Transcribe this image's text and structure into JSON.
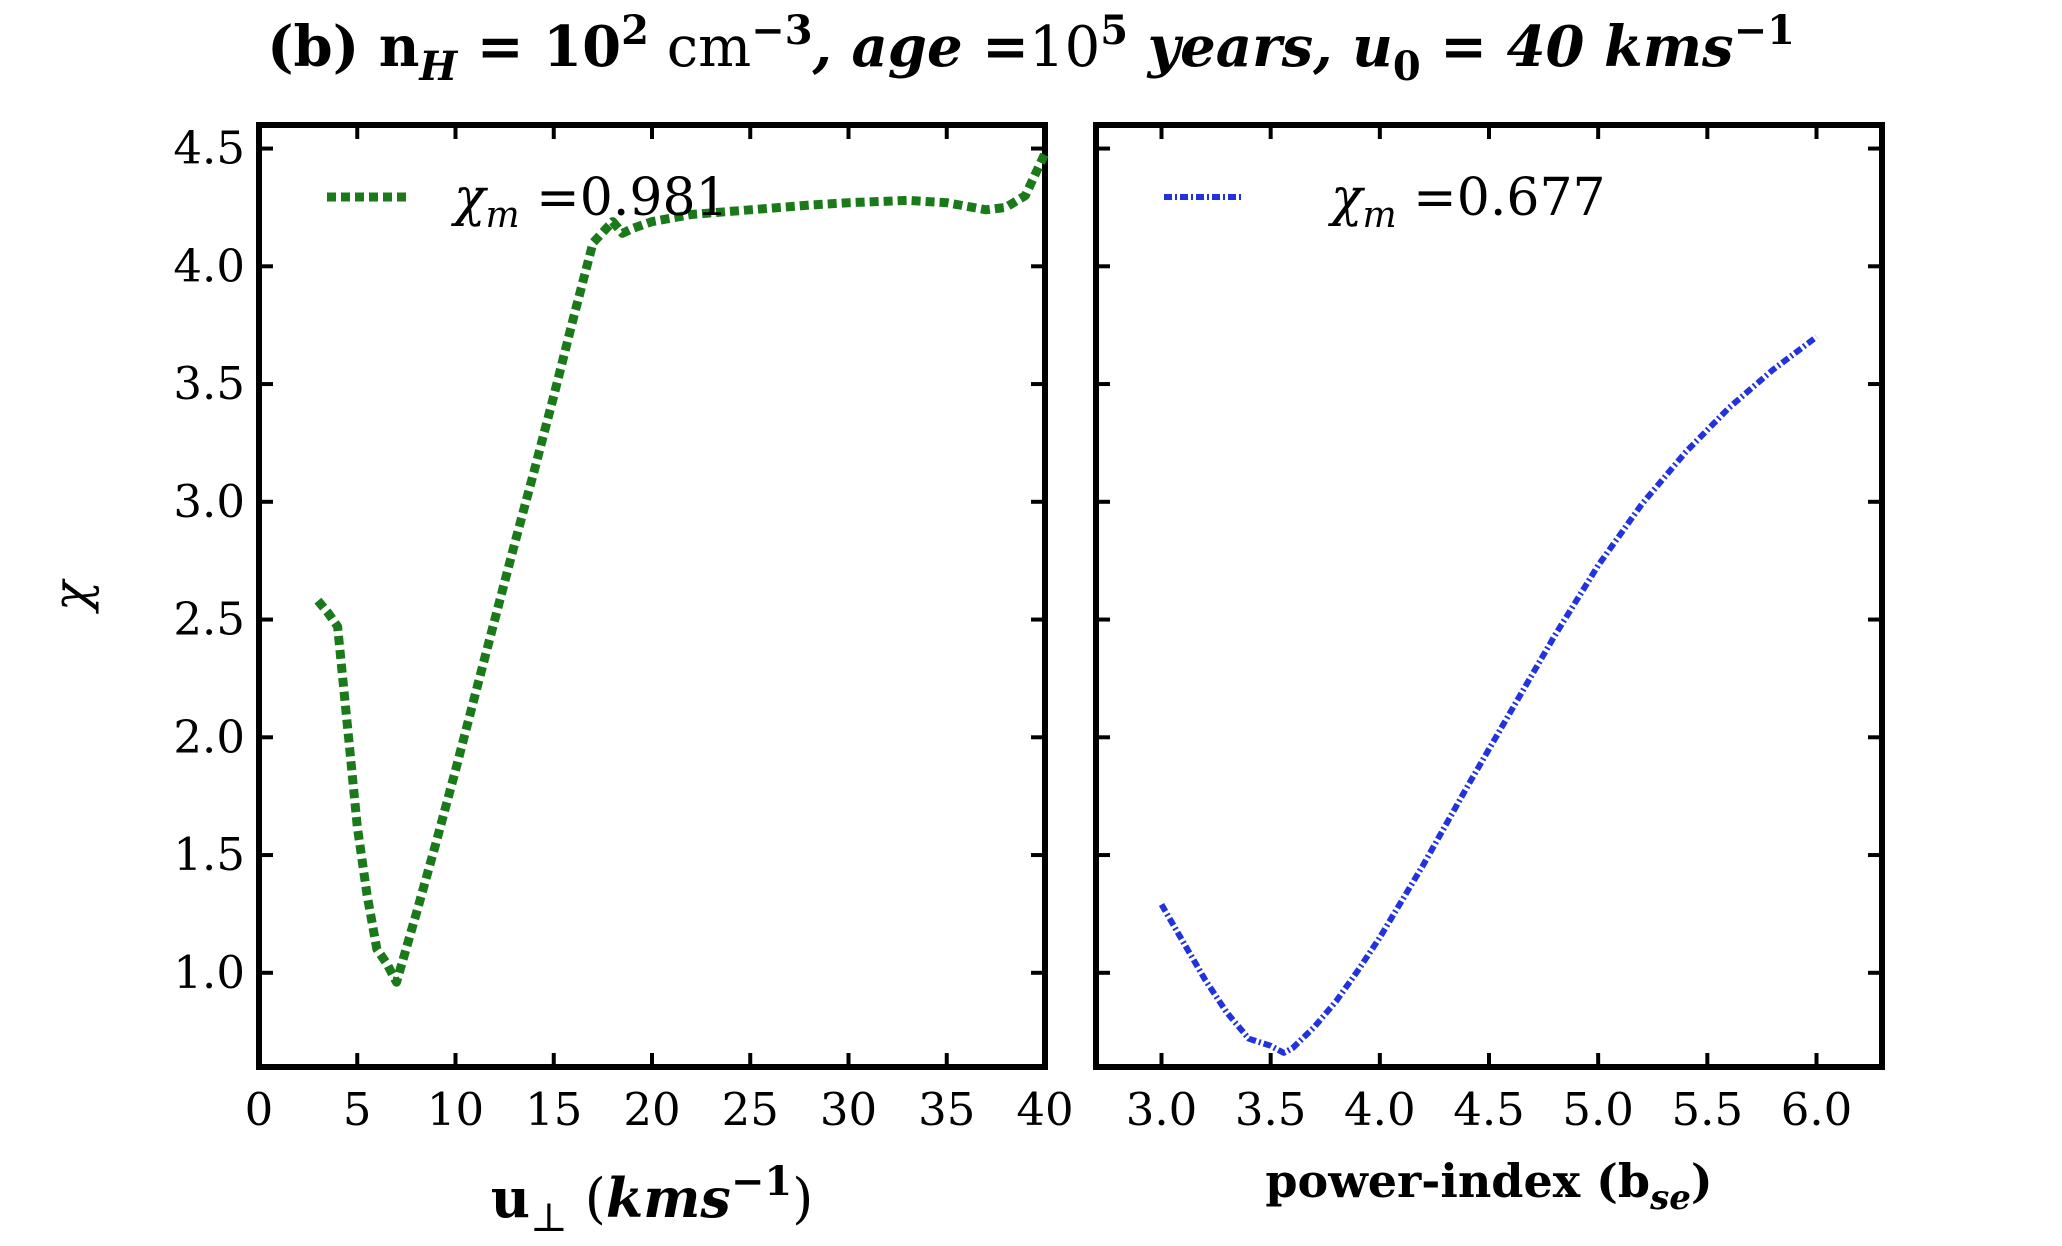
{
  "chart_data": {
    "title_parts": [
      {
        "t": "(b) n",
        "bold": true,
        "italic": false
      },
      {
        "t": "H",
        "bold": true,
        "italic": true,
        "sub": true
      },
      {
        "t": " = 10",
        "bold": true,
        "italic": false
      },
      {
        "t": "2",
        "bold": true,
        "italic": false,
        "sup": true
      },
      {
        "t": " cm",
        "bold": false,
        "italic": false
      },
      {
        "t": "−3",
        "bold": true,
        "italic": false,
        "sup": true
      },
      {
        "t": ", age =",
        "bold": true,
        "italic": true
      },
      {
        "t": "10",
        "bold": false,
        "italic": false
      },
      {
        "t": "5",
        "bold": true,
        "italic": false,
        "sup": true
      },
      {
        "t": " years, u",
        "bold": true,
        "italic": true
      },
      {
        "t": "0",
        "bold": true,
        "italic": false,
        "sub": true
      },
      {
        "t": " = 40 kms",
        "bold": true,
        "italic": true
      },
      {
        "t": "−1",
        "bold": true,
        "italic": false,
        "sup": true
      }
    ],
    "ylabel": "χ",
    "panels": [
      {
        "type": "line",
        "xlabel": {
          "main": "u",
          "sub": "⊥",
          "paren_open": " (",
          "unit": "kms",
          "sup": "−1",
          "paren_close": ")"
        },
        "xlim": [
          0,
          40
        ],
        "ylim": [
          0.6,
          4.6
        ],
        "xticks": [
          "0",
          "5",
          "10",
          "15",
          "20",
          "25",
          "30",
          "35",
          "40"
        ],
        "yticks": [
          "1.0",
          "1.5",
          "2.0",
          "2.5",
          "3.0",
          "3.5",
          "4.0",
          "4.5"
        ],
        "series": [
          {
            "name": "χm =0.981",
            "legend_symbol": "χ",
            "legend_sub": "m",
            "legend_value": " =0.981",
            "color": "#1a7a1a",
            "style": "dotted-thick",
            "x": [
              3,
              3.5,
              4,
              4.5,
              5,
              5.5,
              6,
              6.5,
              7,
              8,
              9,
              10,
              11,
              12,
              13,
              14,
              15,
              16,
              17,
              18,
              18.5,
              19,
              20,
              22,
              25,
              28,
              30,
              33,
              35,
              37,
              38,
              39,
              40
            ],
            "y": [
              2.58,
              2.53,
              2.47,
              2.05,
              1.62,
              1.33,
              1.1,
              1.04,
              0.96,
              1.25,
              1.55,
              1.86,
              2.18,
              2.5,
              2.82,
              3.13,
              3.45,
              3.78,
              4.1,
              4.19,
              4.14,
              4.16,
              4.19,
              4.22,
              4.24,
              4.26,
              4.27,
              4.28,
              4.27,
              4.24,
              4.25,
              4.3,
              4.48
            ]
          }
        ]
      },
      {
        "type": "line",
        "xlabel": {
          "main": "power-index (b",
          "sub": "se",
          "close": ")"
        },
        "xlim": [
          2.7,
          6.3
        ],
        "ylim": [
          0.6,
          4.6
        ],
        "xticks": [
          "3.0",
          "3.5",
          "4.0",
          "4.5",
          "5.0",
          "5.5",
          "6.0"
        ],
        "yticks": [
          "1.0",
          "1.5",
          "2.0",
          "2.5",
          "3.0",
          "3.5",
          "4.0",
          "4.5"
        ],
        "series": [
          {
            "name": "χm =0.677",
            "legend_symbol": "χ",
            "legend_sub": "m",
            "legend_value": " =0.677",
            "color": "#2233dd",
            "style": "dashdot",
            "x": [
              3.0,
              3.1,
              3.2,
              3.3,
              3.4,
              3.5,
              3.56,
              3.6,
              3.7,
              3.8,
              3.9,
              4.0,
              4.2,
              4.4,
              4.6,
              4.8,
              5.0,
              5.2,
              5.4,
              5.6,
              5.8,
              6.0
            ],
            "y": [
              1.29,
              1.13,
              0.97,
              0.83,
              0.72,
              0.69,
              0.66,
              0.68,
              0.77,
              0.88,
              1.01,
              1.15,
              1.46,
              1.79,
              2.11,
              2.43,
              2.73,
              2.99,
              3.21,
              3.4,
              3.56,
              3.7
            ]
          }
        ]
      }
    ]
  }
}
